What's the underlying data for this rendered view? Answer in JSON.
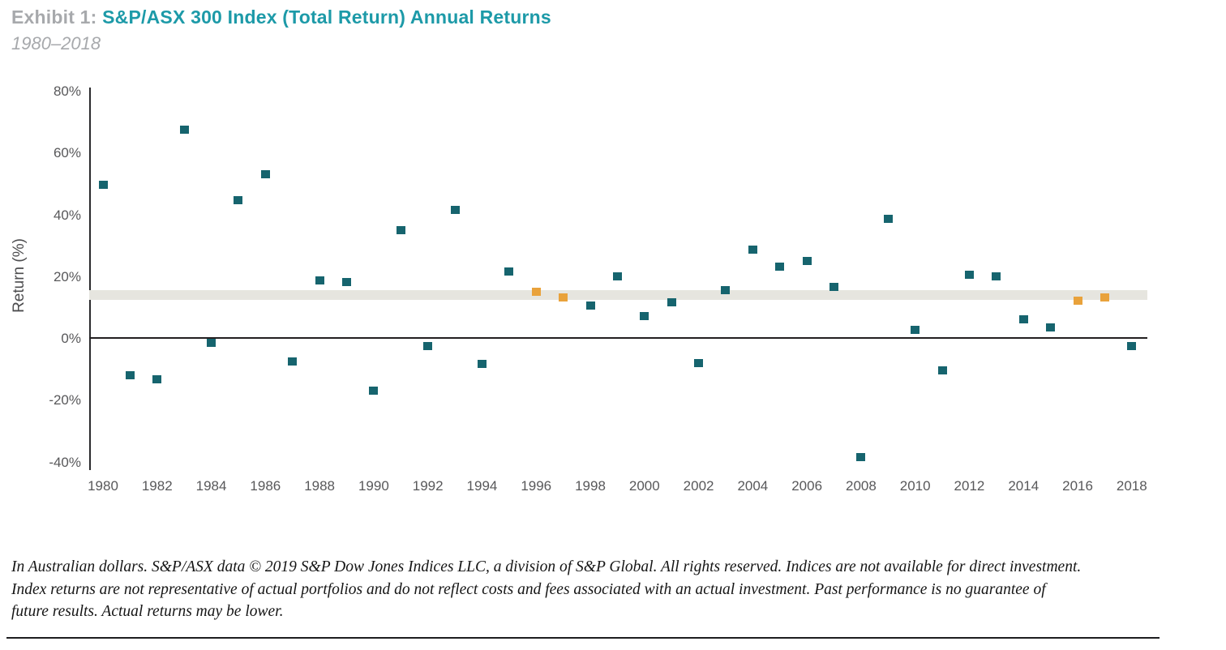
{
  "header": {
    "exhibit_label": "Exhibit 1:",
    "title": "S&P/ASX 300 Index (Total Return) Annual Returns",
    "subtitle": "1980–2018"
  },
  "colors": {
    "title_teal": "#1d9aa8",
    "title_gray": "#a7a9ac",
    "marker_teal": "#16646e",
    "marker_orange": "#e9a23b",
    "band_gray": "#e6e5df",
    "axis_text": "#58585a",
    "line_dark": "#231f20"
  },
  "chart_data": {
    "type": "scatter",
    "title": "S&P/ASX 300 Index (Total Return) Annual Returns",
    "subtitle": "1980–2018",
    "xlabel": "",
    "ylabel": "Return (%)",
    "xlim": [
      1979.5,
      2018.6
    ],
    "ylim": [
      -40,
      80
    ],
    "grid": false,
    "legend": "none",
    "y_ticks": [
      {
        "value": 80,
        "label": "80%"
      },
      {
        "value": 60,
        "label": "60%"
      },
      {
        "value": 40,
        "label": "40%"
      },
      {
        "value": 20,
        "label": "20%"
      },
      {
        "value": 0,
        "label": "0%"
      },
      {
        "value": -20,
        "label": "-20%"
      },
      {
        "value": -40,
        "label": "-40%"
      }
    ],
    "x_ticks": [
      {
        "year": 1980,
        "label": "1980"
      },
      {
        "year": 1982,
        "label": "1982"
      },
      {
        "year": 1984,
        "label": "1984"
      },
      {
        "year": 1986,
        "label": "1986"
      },
      {
        "year": 1988,
        "label": "1988"
      },
      {
        "year": 1990,
        "label": "1990"
      },
      {
        "year": 1992,
        "label": "1992"
      },
      {
        "year": 1994,
        "label": "1994"
      },
      {
        "year": 1996,
        "label": "1996"
      },
      {
        "year": 1998,
        "label": "1998"
      },
      {
        "year": 2000,
        "label": "2000"
      },
      {
        "year": 2002,
        "label": "2002"
      },
      {
        "year": 2004,
        "label": "2004"
      },
      {
        "year": 2006,
        "label": "2006"
      },
      {
        "year": 2008,
        "label": "2008"
      },
      {
        "year": 2010,
        "label": "2010"
      },
      {
        "year": 2012,
        "label": "2012"
      },
      {
        "year": 2014,
        "label": "2014"
      },
      {
        "year": 2016,
        "label": "2016"
      },
      {
        "year": 2018,
        "label": "2018"
      }
    ],
    "average_band": {
      "from_pct": 12.2,
      "to_pct": 15.6
    },
    "highlight_note": "orange markers highlight years 1996, 1997, 2016, 2017",
    "points": [
      {
        "year": 1980,
        "value": 49.5,
        "highlight": false
      },
      {
        "year": 1981,
        "value": -12.0,
        "highlight": false
      },
      {
        "year": 1982,
        "value": -13.5,
        "highlight": false
      },
      {
        "year": 1983,
        "value": 67.5,
        "highlight": false
      },
      {
        "year": 1984,
        "value": -1.5,
        "highlight": false
      },
      {
        "year": 1985,
        "value": 44.5,
        "highlight": false
      },
      {
        "year": 1986,
        "value": 53.0,
        "highlight": false
      },
      {
        "year": 1987,
        "value": -7.5,
        "highlight": false
      },
      {
        "year": 1988,
        "value": 18.5,
        "highlight": false
      },
      {
        "year": 1989,
        "value": 18.0,
        "highlight": false
      },
      {
        "year": 1990,
        "value": -17.0,
        "highlight": false
      },
      {
        "year": 1991,
        "value": 35.0,
        "highlight": false
      },
      {
        "year": 1992,
        "value": -2.5,
        "highlight": false
      },
      {
        "year": 1993,
        "value": 41.5,
        "highlight": false
      },
      {
        "year": 1994,
        "value": -8.5,
        "highlight": false
      },
      {
        "year": 1995,
        "value": 21.5,
        "highlight": false
      },
      {
        "year": 1996,
        "value": 15.0,
        "highlight": true
      },
      {
        "year": 1997,
        "value": 13.0,
        "highlight": true
      },
      {
        "year": 1998,
        "value": 10.5,
        "highlight": false
      },
      {
        "year": 1999,
        "value": 20.0,
        "highlight": false
      },
      {
        "year": 2000,
        "value": 7.0,
        "highlight": false
      },
      {
        "year": 2001,
        "value": 11.5,
        "highlight": false
      },
      {
        "year": 2002,
        "value": -8.0,
        "highlight": false
      },
      {
        "year": 2003,
        "value": 15.5,
        "highlight": false
      },
      {
        "year": 2004,
        "value": 28.5,
        "highlight": false
      },
      {
        "year": 2005,
        "value": 23.0,
        "highlight": false
      },
      {
        "year": 2006,
        "value": 25.0,
        "highlight": false
      },
      {
        "year": 2007,
        "value": 16.5,
        "highlight": false
      },
      {
        "year": 2008,
        "value": -38.5,
        "highlight": false
      },
      {
        "year": 2009,
        "value": 38.5,
        "highlight": false
      },
      {
        "year": 2010,
        "value": 2.5,
        "highlight": false
      },
      {
        "year": 2011,
        "value": -10.5,
        "highlight": false
      },
      {
        "year": 2012,
        "value": 20.5,
        "highlight": false
      },
      {
        "year": 2013,
        "value": 20.0,
        "highlight": false
      },
      {
        "year": 2014,
        "value": 6.0,
        "highlight": false
      },
      {
        "year": 2015,
        "value": 3.5,
        "highlight": false
      },
      {
        "year": 2016,
        "value": 12.0,
        "highlight": true
      },
      {
        "year": 2017,
        "value": 13.0,
        "highlight": true
      },
      {
        "year": 2018,
        "value": -2.5,
        "highlight": false
      }
    ]
  },
  "footnote": {
    "lines": [
      "In Australian dollars. S&P/ASX data © 2019 S&P Dow Jones Indices LLC, a division of S&P Global. All rights reserved. Indices are not available for direct investment.",
      "Index returns are not representative of actual portfolios and do not reflect costs and fees associated with an actual investment. Past performance is no guarantee of",
      "future results. Actual returns may be lower."
    ]
  }
}
